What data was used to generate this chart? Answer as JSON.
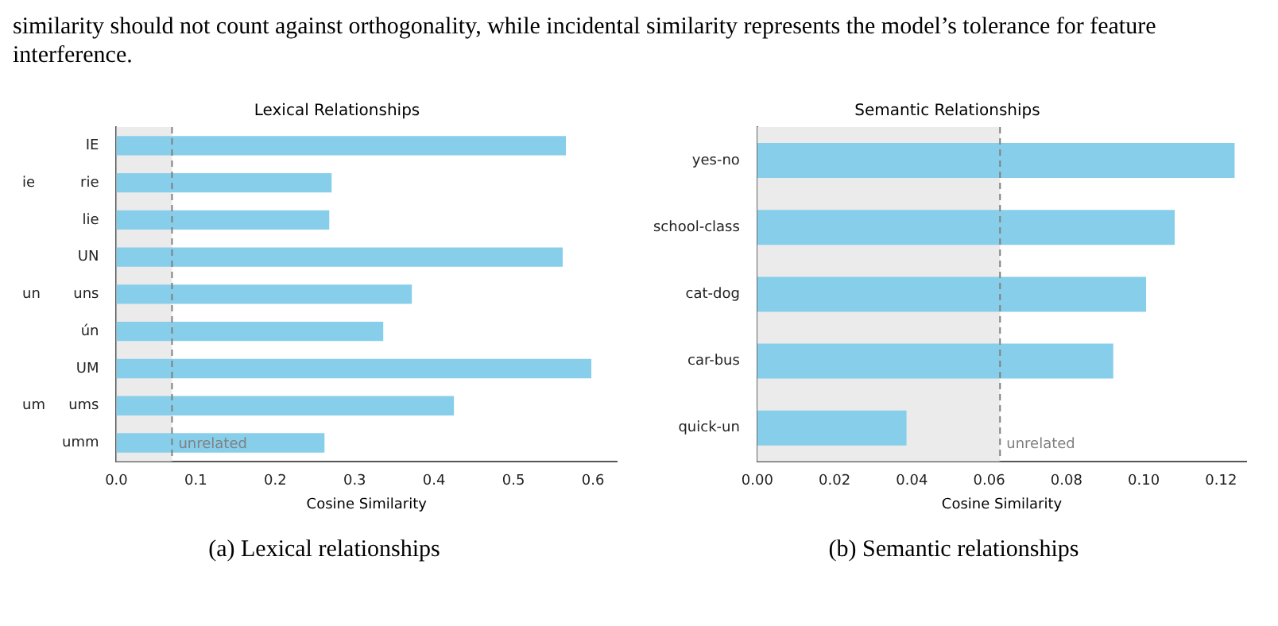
{
  "chart_data": [
    {
      "type": "bar",
      "orientation": "horizontal",
      "title": "Lexical Relationships",
      "xlabel": "Cosine Similarity",
      "categories": [
        "IE",
        "rie",
        "lie",
        "UN",
        "uns",
        "ún",
        "UM",
        "ums",
        "umm"
      ],
      "values": [
        0.566,
        0.271,
        0.268,
        0.562,
        0.372,
        0.336,
        0.598,
        0.425,
        0.262
      ],
      "color": "#87ceeb",
      "xlim": [
        0,
        0.63
      ],
      "xticks": [
        {
          "value": 0,
          "label": "0.0"
        },
        0.1,
        0.2,
        0.3,
        0.4,
        0.5,
        0.6
      ],
      "bands": [
        {
          "axis": "x",
          "from": 0,
          "to": 0.07,
          "color": "#ebebeb"
        }
      ],
      "ref_lines": [
        {
          "axis": "x",
          "value": 0.07,
          "label": "unrelated",
          "line_style": "dashed",
          "color": "#808080"
        }
      ],
      "annotations": [
        "similarity should not count against orthogonality, while incidental similarity represents the model’s tolerance for feature interference.",
        "(a) Lexical relationships",
        "ie",
        "un",
        "um"
      ],
      "grid": false,
      "legend": false
    },
    {
      "type": "bar",
      "orientation": "horizontal",
      "title": "Semantic Relationships",
      "xlabel": "Cosine Similarity",
      "categories": [
        "yes-no",
        "school-class",
        "cat-dog",
        "car-bus",
        "quick-un"
      ],
      "values": [
        0.1235,
        0.108,
        0.1006,
        0.0921,
        0.0386
      ],
      "color": "#87ceeb",
      "xlim": [
        0,
        0.1265
      ],
      "xticks": [
        {
          "value": 0,
          "label": "0.00"
        },
        {
          "value": 0.02,
          "label": "0.02"
        },
        {
          "value": 0.04,
          "label": "0.04"
        },
        {
          "value": 0.06,
          "label": "0.06"
        },
        {
          "value": 0.08,
          "label": "0.08"
        },
        {
          "value": 0.1,
          "label": "0.10"
        },
        {
          "value": 0.12,
          "label": "0.12"
        }
      ],
      "bands": [
        {
          "axis": "x",
          "from": 0,
          "to": 0.0628,
          "color": "#ebebeb"
        }
      ],
      "ref_lines": [
        {
          "axis": "x",
          "value": 0.0628,
          "label": "unrelated",
          "line_style": "dashed",
          "color": "#808080"
        }
      ],
      "annotations": [
        "(b) Semantic relationships"
      ],
      "grid": false,
      "legend": false
    }
  ]
}
